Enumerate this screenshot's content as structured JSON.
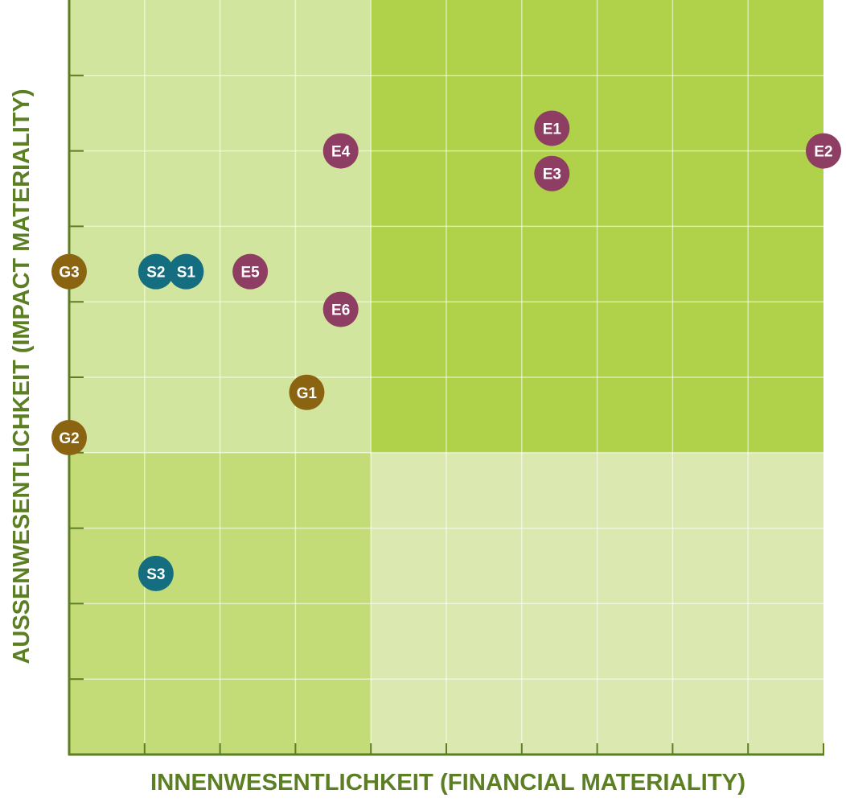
{
  "chart_data": {
    "type": "scatter",
    "title": "",
    "xlabel": "INNENWESENTLICHKEIT (FINANCIAL MATERIALITY)",
    "ylabel": "AUSSENWESENTLICHKEIT (IMPACT MATERIALITY)",
    "xlim": [
      0,
      10
    ],
    "ylim": [
      0,
      10
    ],
    "grid": true,
    "legend": "none",
    "quadrant_threshold": {
      "x": 4,
      "y": 4
    },
    "quadrant_colors": {
      "low_low": "#c3dc78",
      "low_x_high_y": "#d2e59e",
      "high_x_low_y": "#dbe9b0",
      "high_high": "#b0d24a"
    },
    "axis_color": "#5c7f24",
    "group_colors": {
      "E": "#8f3e63",
      "S": "#156e80",
      "G": "#8b6412"
    },
    "points": [
      {
        "label": "E1",
        "group": "E",
        "x": 6.4,
        "y": 8.3
      },
      {
        "label": "E2",
        "group": "E",
        "x": 10.0,
        "y": 8.0
      },
      {
        "label": "E3",
        "group": "E",
        "x": 6.4,
        "y": 7.7
      },
      {
        "label": "E4",
        "group": "E",
        "x": 3.6,
        "y": 8.0
      },
      {
        "label": "E5",
        "group": "E",
        "x": 2.4,
        "y": 6.4
      },
      {
        "label": "E6",
        "group": "E",
        "x": 3.6,
        "y": 5.9
      },
      {
        "label": "S1",
        "group": "S",
        "x": 1.55,
        "y": 6.4
      },
      {
        "label": "S2",
        "group": "S",
        "x": 1.15,
        "y": 6.4
      },
      {
        "label": "S3",
        "group": "S",
        "x": 1.15,
        "y": 2.4
      },
      {
        "label": "G1",
        "group": "G",
        "x": 3.15,
        "y": 4.8
      },
      {
        "label": "G2",
        "group": "G",
        "x": 0.0,
        "y": 4.2
      },
      {
        "label": "G3",
        "group": "G",
        "x": 0.0,
        "y": 6.4
      }
    ]
  }
}
